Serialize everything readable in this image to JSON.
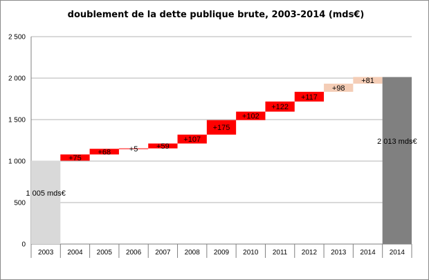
{
  "chart_data": {
    "type": "bar",
    "subtype": "waterfall",
    "title": "doublement de la dette publique brute, 2003-2014  (mds€)",
    "xlabel": "",
    "ylabel": "",
    "ylim": [
      0,
      2500
    ],
    "yticks": [
      "0",
      "500",
      "1 000",
      "1 500",
      "2 000",
      "2 500"
    ],
    "ytick_values": [
      0,
      500,
      1000,
      1500,
      2000,
      2500
    ],
    "grid": true,
    "legend": "none",
    "categories": [
      "2003",
      "2004",
      "2005",
      "2006",
      "2007",
      "2008",
      "2009",
      "2010",
      "2011",
      "2012",
      "2013",
      "2014",
      "2014"
    ],
    "bars": [
      {
        "category": "2003",
        "kind": "total",
        "base": 0,
        "value": 1005,
        "label": "1 005 mds€",
        "color": "#d9d9d9"
      },
      {
        "category": "2004",
        "kind": "increment",
        "base": 1005,
        "value": 75,
        "label": "+75",
        "color": "#ff0000"
      },
      {
        "category": "2005",
        "kind": "increment",
        "base": 1080,
        "value": 68,
        "label": "+68",
        "color": "#ff0000"
      },
      {
        "category": "2006",
        "kind": "increment",
        "base": 1148,
        "value": 5,
        "label": "+5",
        "color": "#ff0000"
      },
      {
        "category": "2007",
        "kind": "increment",
        "base": 1153,
        "value": 59,
        "label": "+59",
        "color": "#ff0000"
      },
      {
        "category": "2008",
        "kind": "increment",
        "base": 1212,
        "value": 107,
        "label": "+107",
        "color": "#ff0000"
      },
      {
        "category": "2009",
        "kind": "increment",
        "base": 1319,
        "value": 175,
        "label": "+175",
        "color": "#ff0000"
      },
      {
        "category": "2010",
        "kind": "increment",
        "base": 1494,
        "value": 102,
        "label": "+102",
        "color": "#ff0000"
      },
      {
        "category": "2011",
        "kind": "increment",
        "base": 1596,
        "value": 122,
        "label": "+122",
        "color": "#ff0000"
      },
      {
        "category": "2012",
        "kind": "increment",
        "base": 1718,
        "value": 117,
        "label": "+117",
        "color": "#ff0000"
      },
      {
        "category": "2013",
        "kind": "increment",
        "base": 1835,
        "value": 98,
        "label": "+98",
        "color": "#f4cdb6"
      },
      {
        "category": "2014",
        "kind": "increment",
        "base": 1933,
        "value": 81,
        "label": "+81",
        "color": "#f4cdb6"
      },
      {
        "category": "2014",
        "kind": "total",
        "base": 0,
        "value": 2013,
        "label": "2 013 mds€",
        "color": "#808080"
      }
    ]
  }
}
